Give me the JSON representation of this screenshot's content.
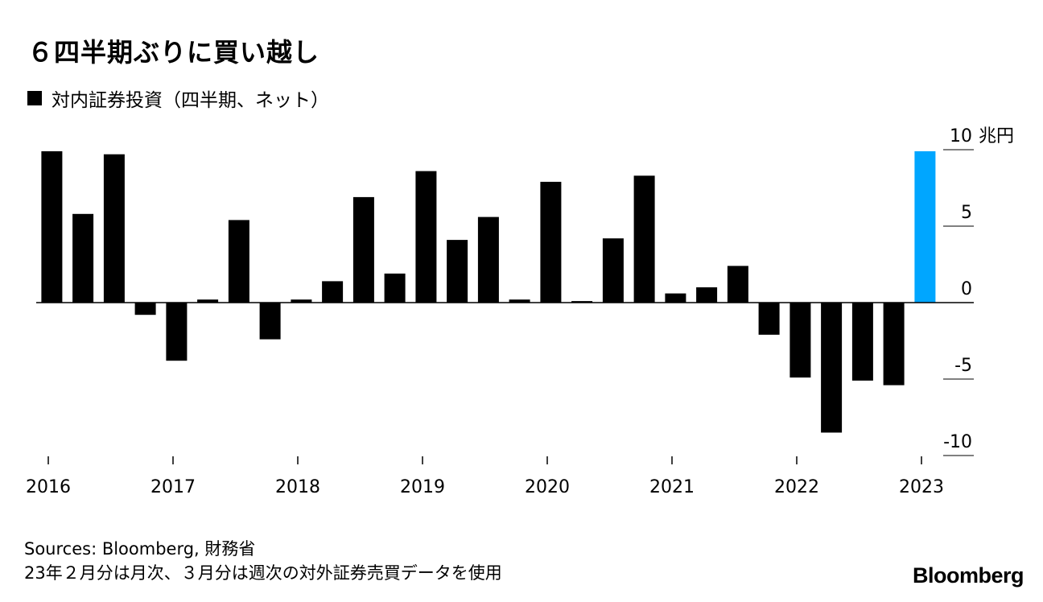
{
  "title": "６四半期ぶりに買い越し",
  "legend": "対内証券投資（四半期、ネット）",
  "unit": "兆円",
  "source": "Sources: Bloomberg, 財務省",
  "note": "23年２月分は月次、３月分は週次の対外証券売買データを使用",
  "logo": "Bloomberg",
  "colors": {
    "bar": "#000000",
    "highlight": "#00a6ff"
  },
  "chart_data": {
    "type": "bar",
    "ylim": [
      -10,
      10
    ],
    "yticks": [
      10,
      5,
      0,
      -5,
      -10
    ],
    "xticks": [
      "2016",
      "2017",
      "2018",
      "2019",
      "2020",
      "2021",
      "2022",
      "2023"
    ],
    "series": [
      {
        "values": [
          9.9,
          5.8,
          9.7,
          -0.8,
          -3.8,
          0.2,
          5.4,
          -2.4,
          0.2,
          1.4,
          6.9,
          1.9,
          8.6,
          4.1,
          5.6,
          0.2,
          7.9,
          0.1,
          4.2,
          8.3,
          0.6,
          1.0,
          2.4,
          -2.1,
          -4.9,
          -8.5,
          -5.1,
          -5.4,
          9.9
        ],
        "highlight_index": 28
      }
    ]
  }
}
